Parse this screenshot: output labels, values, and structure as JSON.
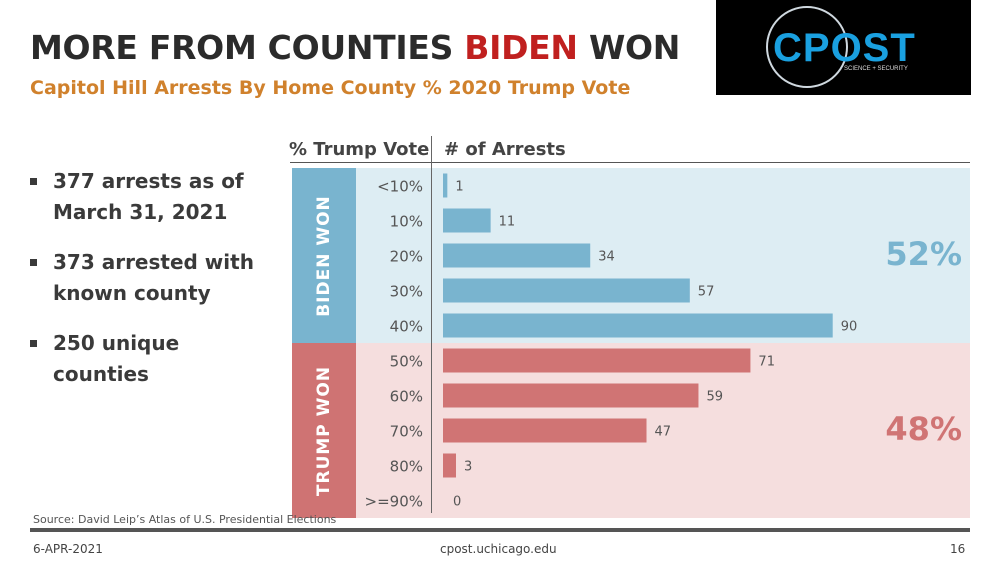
{
  "header": {
    "title_part1": "MORE FROM COUNTIES ",
    "title_highlight": "BIDEN",
    "title_part2": " WON",
    "subtitle": "Capitol Hill Arrests By Home County % 2020 Trump Vote"
  },
  "logo": {
    "text": "CPOST",
    "tagline": "SCIENCE + SECURITY"
  },
  "bullets": [
    "377 arrests as of March 31, 2021",
    "373 arrested with known county",
    "250 unique counties"
  ],
  "chart_data": {
    "type": "bar",
    "orientation": "horizontal",
    "category_header": "% Trump Vote",
    "value_header": "# of Arrests",
    "categories": [
      "<10%",
      "10%",
      "20%",
      "30%",
      "40%",
      "50%",
      "60%",
      "70%",
      "80%",
      ">=90%"
    ],
    "values": [
      1,
      11,
      34,
      57,
      90,
      71,
      59,
      47,
      3,
      0
    ],
    "groups": [
      {
        "label": "BIDEN WON",
        "share": "52%",
        "categories": [
          "<10%",
          "10%",
          "20%",
          "30%",
          "40%"
        ],
        "bar_color": "#79b4cf",
        "band_color": "#ddedf3",
        "label_bg": "#79b4cf",
        "share_color": "#79b4cf"
      },
      {
        "label": "TRUMP WON",
        "share": "48%",
        "categories": [
          "50%",
          "60%",
          "70%",
          "80%",
          ">=90%"
        ],
        "bar_color": "#d07474",
        "band_color": "#f5dede",
        "label_bg": "#cf7373",
        "share_color": "#d07474"
      }
    ],
    "data_labels": true,
    "grid": false
  },
  "source": "Source: David Leip’s Atlas of U.S. Presidential Elections",
  "footer": {
    "date": "6-APR-2021",
    "site": "cpost.uchicago.edu",
    "page": "16"
  }
}
